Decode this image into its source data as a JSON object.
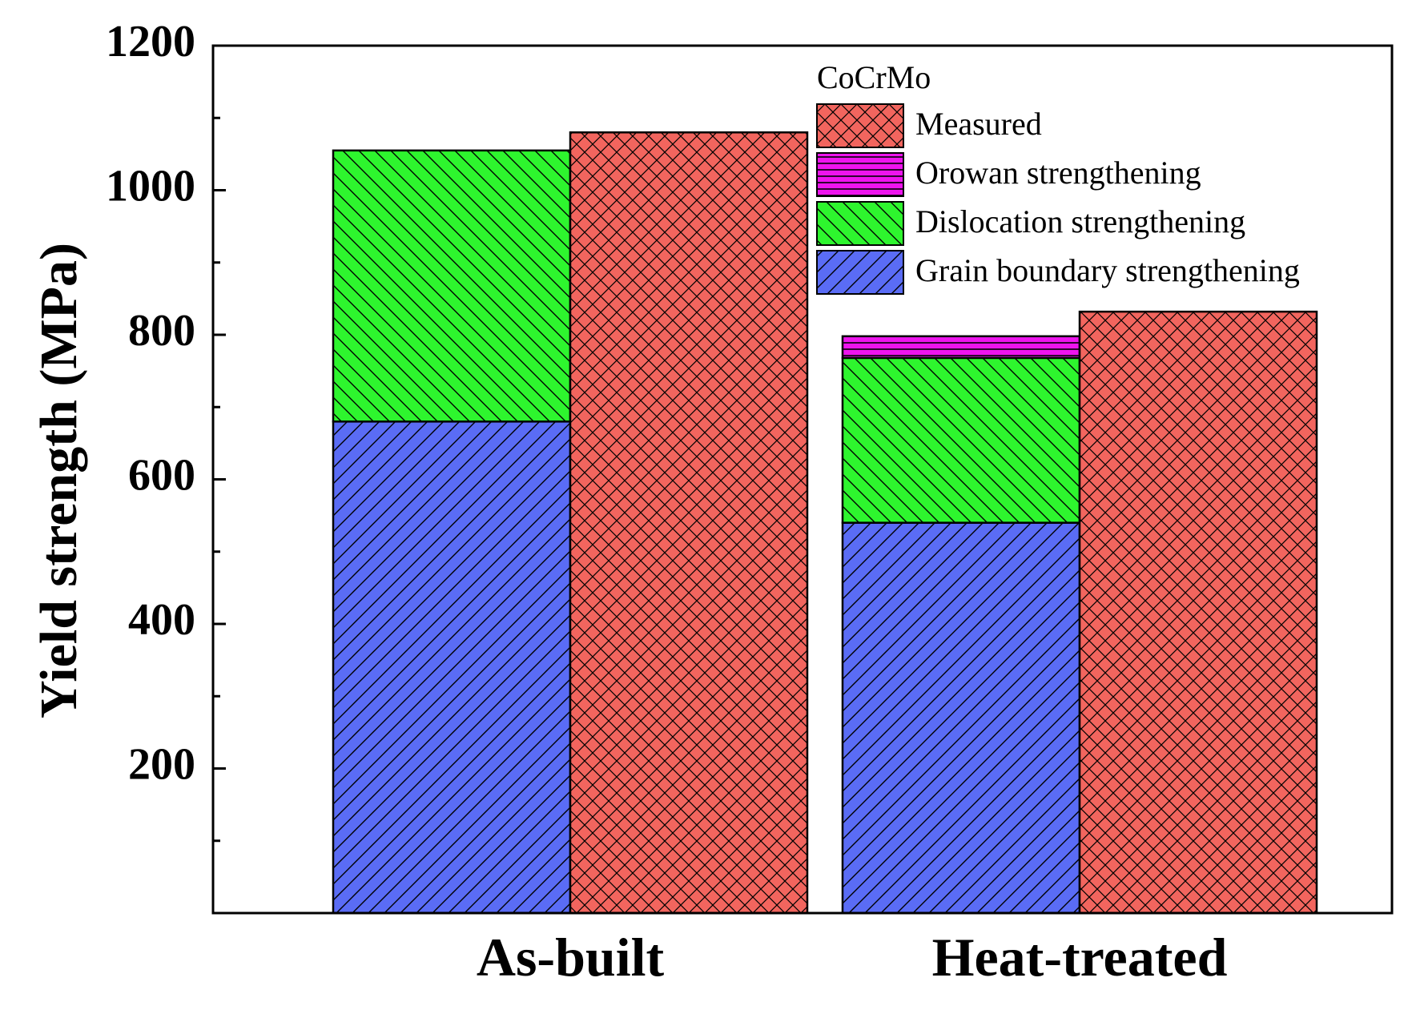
{
  "chart_data": {
    "type": "bar",
    "stacked_with_reference": true,
    "title": "",
    "xlabel": "",
    "ylabel": "Yield strength (MPa)",
    "ylim": [
      0,
      1200
    ],
    "yticks": [
      200,
      400,
      600,
      800,
      1000,
      1200
    ],
    "categories": [
      "As-built",
      "Heat-treated"
    ],
    "legend_title": "CoCrMo",
    "legend_position": "top-right",
    "series": [
      {
        "name": "Grain boundary strengthening",
        "key": "grain",
        "color": "#5a6cf5",
        "pattern": "diag-right",
        "stack": "calculated",
        "values": [
          680,
          540
        ]
      },
      {
        "name": "Dislocation strengthening",
        "key": "dislocation",
        "color": "#2ef52e",
        "pattern": "diag-left",
        "stack": "calculated",
        "values": [
          375,
          228
        ]
      },
      {
        "name": "Orowan strengthening",
        "key": "orowan",
        "color": "#ee14ee",
        "pattern": "horizontal",
        "stack": "calculated",
        "values": [
          0,
          30
        ]
      },
      {
        "name": "Measured",
        "key": "measured",
        "color": "#f2655e",
        "pattern": "crosshatch",
        "stack": "measured",
        "values": [
          1080,
          832
        ]
      }
    ],
    "legend_order": [
      "measured",
      "orowan",
      "dislocation",
      "grain"
    ]
  }
}
